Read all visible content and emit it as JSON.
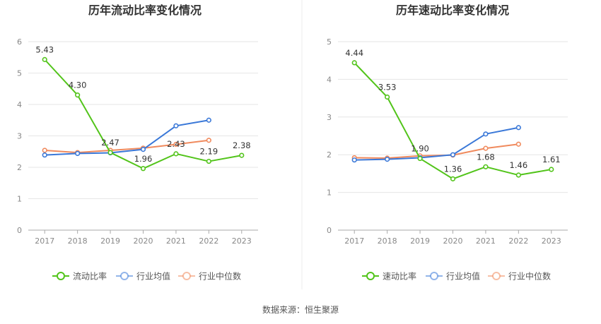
{
  "chart_data": [
    {
      "type": "line",
      "title": "历年流动比率变化情况",
      "categories": [
        "2017",
        "2018",
        "2019",
        "2020",
        "2021",
        "2022",
        "2023"
      ],
      "ylim": [
        0,
        6
      ],
      "yticks": [
        "0",
        "1",
        "2",
        "3",
        "4",
        "5",
        "6"
      ],
      "grid": true,
      "legend_position": "bottom",
      "series": [
        {
          "name": "流动比率",
          "color": "#52c41a",
          "values": [
            5.43,
            4.3,
            2.47,
            1.96,
            2.43,
            2.19,
            2.38
          ],
          "labels": [
            "5.43",
            "4.30",
            "2.47",
            "1.96",
            "2.43",
            "2.19",
            "2.38"
          ]
        },
        {
          "name": "行业均值",
          "color": "#3a78d8",
          "values": [
            2.39,
            2.44,
            2.46,
            2.57,
            3.32,
            3.5,
            null
          ]
        },
        {
          "name": "行业中位数",
          "color": "#f08a5d",
          "values": [
            2.54,
            2.47,
            2.54,
            2.61,
            2.73,
            2.86,
            null
          ]
        }
      ]
    },
    {
      "type": "line",
      "title": "历年速动比率变化情况",
      "categories": [
        "2017",
        "2018",
        "2019",
        "2020",
        "2021",
        "2022",
        "2023"
      ],
      "ylim": [
        0,
        5
      ],
      "yticks": [
        "0",
        "1",
        "2",
        "3",
        "4",
        "5"
      ],
      "grid": true,
      "legend_position": "bottom",
      "series": [
        {
          "name": "速动比率",
          "color": "#52c41a",
          "values": [
            4.44,
            3.53,
            1.9,
            1.36,
            1.68,
            1.46,
            1.61
          ],
          "labels": [
            "4.44",
            "3.53",
            "1.90",
            "1.36",
            "1.68",
            "1.46",
            "1.61"
          ]
        },
        {
          "name": "行业均值",
          "color": "#3a78d8",
          "values": [
            1.86,
            1.88,
            1.92,
            2.0,
            2.55,
            2.72,
            null
          ]
        },
        {
          "name": "行业中位数",
          "color": "#f08a5d",
          "values": [
            1.92,
            1.91,
            1.97,
            1.99,
            2.17,
            2.28,
            null
          ]
        }
      ]
    }
  ],
  "source_text": "数据来源：恒生聚源"
}
